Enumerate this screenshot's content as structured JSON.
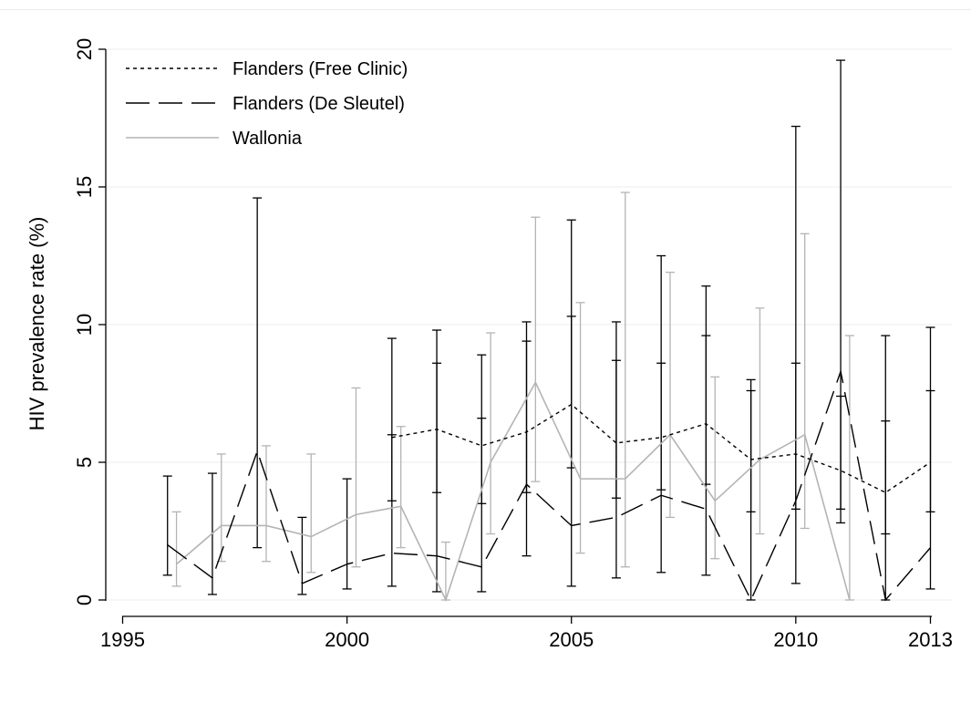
{
  "chart_data": {
    "type": "line",
    "title": "",
    "xlabel": "",
    "ylabel": "HIV prevalence rate (%)",
    "xlim": [
      1995,
      2013
    ],
    "ylim": [
      0,
      20
    ],
    "x_ticks": [
      1995,
      2000,
      2005,
      2010,
      2013
    ],
    "y_ticks": [
      0,
      5,
      10,
      15,
      20
    ],
    "grid": true,
    "legend_position": "top-left",
    "series": [
      {
        "name": "Flanders (Free Clinic)",
        "color": "#000000",
        "dash": "dotted",
        "x": [
          2001,
          2002,
          2003,
          2004,
          2005,
          2006,
          2007,
          2008,
          2009,
          2010,
          2011,
          2012,
          2013
        ],
        "y": [
          5.9,
          6.2,
          5.6,
          6.1,
          7.1,
          5.7,
          5.9,
          6.4,
          5.1,
          5.3,
          4.7,
          3.9,
          5.0
        ],
        "lower": [
          3.6,
          3.9,
          3.5,
          3.9,
          4.8,
          3.7,
          4.0,
          4.2,
          3.2,
          3.3,
          2.8,
          2.4,
          3.2
        ],
        "upper": [
          9.5,
          9.8,
          8.9,
          9.4,
          10.3,
          8.7,
          8.6,
          9.6,
          8.0,
          8.6,
          7.4,
          6.5,
          7.6
        ]
      },
      {
        "name": "Flanders (De Sleutel)",
        "color": "#000000",
        "dash": "long-dash",
        "x": [
          1996,
          1997,
          1998,
          1999,
          2000,
          2001,
          2002,
          2003,
          2004,
          2005,
          2006,
          2007,
          2008,
          2009,
          2010,
          2011,
          2012,
          2013
        ],
        "y": [
          2.0,
          0.8,
          5.4,
          0.6,
          1.3,
          1.7,
          1.6,
          1.2,
          4.2,
          2.7,
          3.0,
          3.8,
          3.3,
          0.0,
          3.6,
          8.3,
          0.0,
          1.9
        ],
        "lower": [
          0.9,
          0.2,
          1.9,
          0.2,
          0.4,
          0.5,
          0.3,
          0.3,
          1.6,
          0.5,
          0.8,
          1.0,
          0.9,
          0.0,
          0.6,
          3.3,
          0.0,
          0.4
        ],
        "upper": [
          4.5,
          4.6,
          14.6,
          3.0,
          4.4,
          6.0,
          8.6,
          6.6,
          10.1,
          13.8,
          10.1,
          12.5,
          11.4,
          7.6,
          17.2,
          19.6,
          9.6,
          9.9
        ]
      },
      {
        "name": "Wallonia",
        "color": "#b4b4b4",
        "dash": "solid",
        "x": [
          1996.2,
          1997.2,
          1998.2,
          1999.2,
          2000.2,
          2001.2,
          2002.2,
          2003.2,
          2004.2,
          2005.2,
          2006.2,
          2007.2,
          2008.2,
          2009.2,
          2010.2,
          2011.2
        ],
        "y": [
          1.3,
          2.7,
          2.7,
          2.3,
          3.1,
          3.4,
          0.0,
          5.0,
          7.9,
          4.4,
          4.4,
          6.0,
          3.6,
          5.1,
          6.0,
          0.0
        ],
        "lower": [
          0.5,
          1.4,
          1.4,
          1.0,
          1.2,
          1.9,
          0.0,
          2.4,
          4.3,
          1.7,
          1.2,
          3.0,
          1.5,
          2.4,
          2.6,
          0.0
        ],
        "upper": [
          3.2,
          5.3,
          5.6,
          5.3,
          7.7,
          6.3,
          2.1,
          9.7,
          13.9,
          10.8,
          14.8,
          11.9,
          8.1,
          10.6,
          13.3,
          9.6
        ]
      }
    ]
  }
}
